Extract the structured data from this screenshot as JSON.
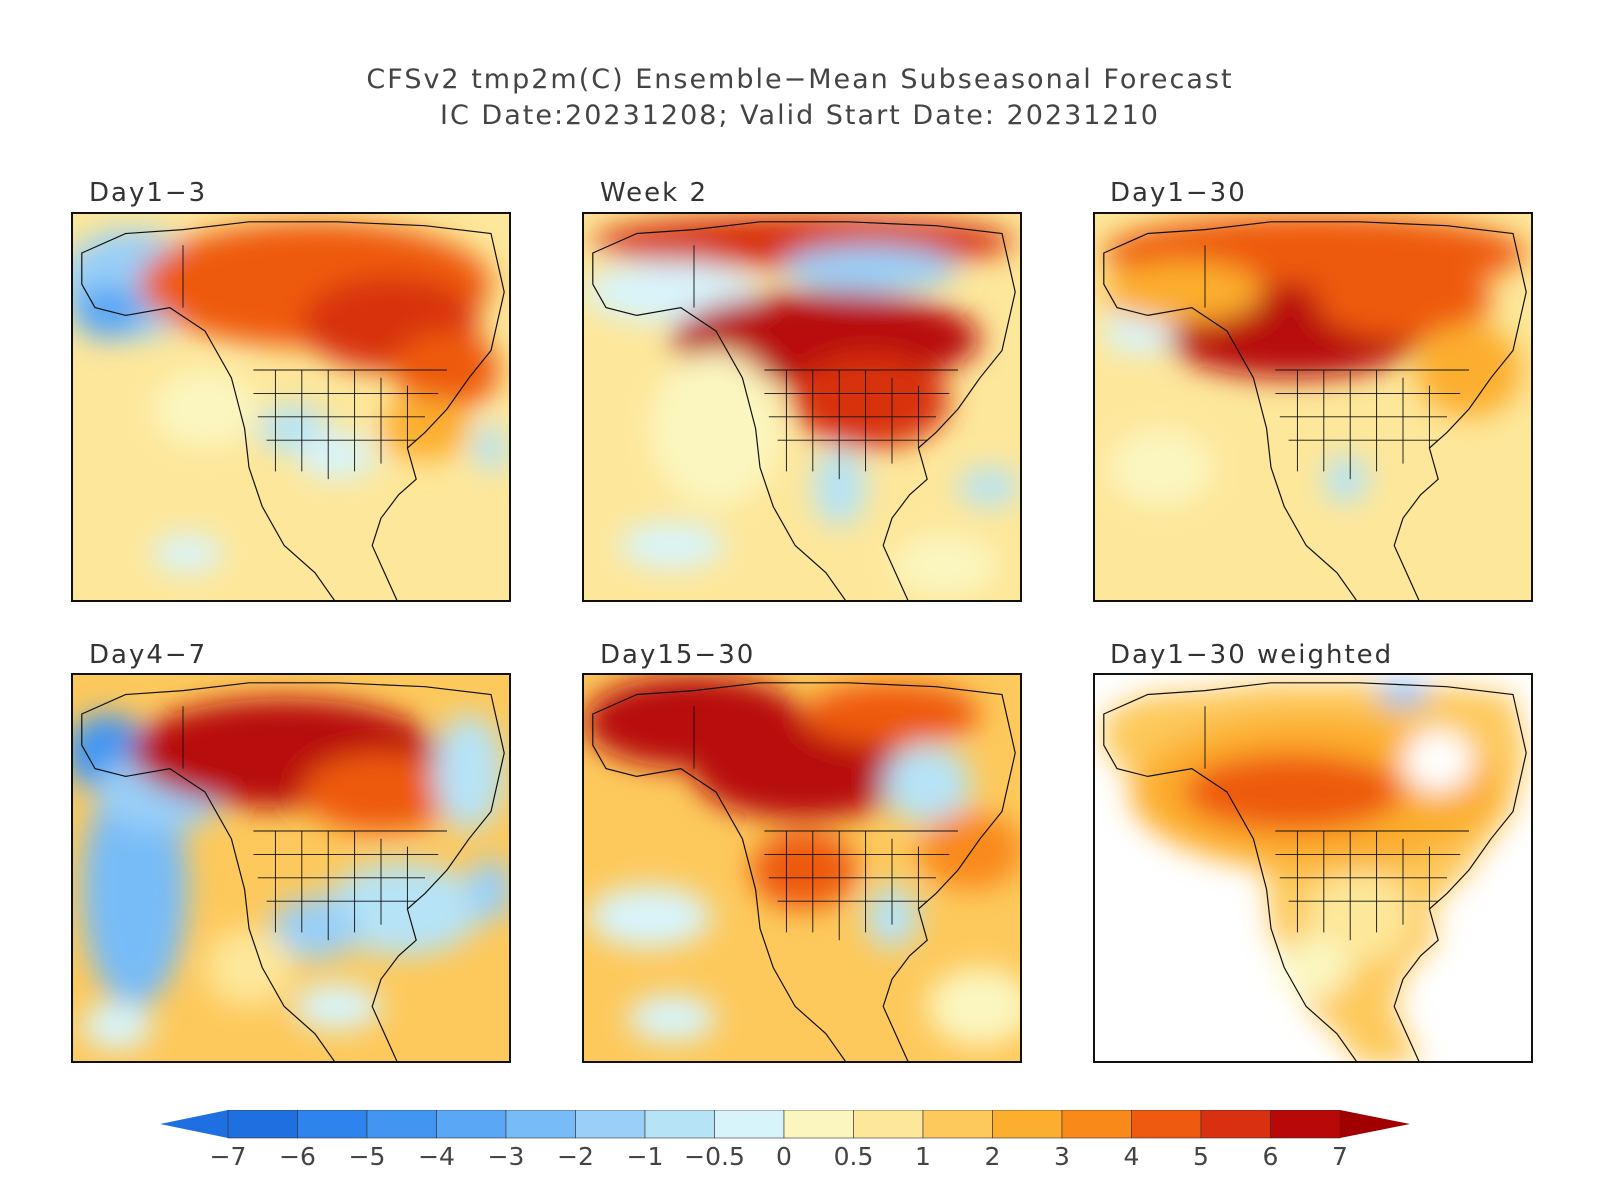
{
  "title": {
    "line1": "CFSv2 tmp2m(C) Ensemble−Mean Subseasonal Forecast",
    "line2": "IC Date:20231208; Valid Start Date: 20231210"
  },
  "panels": [
    {
      "label": "Day1−3"
    },
    {
      "label": "Week 2"
    },
    {
      "label": "Day1−30"
    },
    {
      "label": "Day4−7"
    },
    {
      "label": "Day15−30"
    },
    {
      "label": "Day1−30 weighted"
    }
  ],
  "colorbar": {
    "ticks": [
      "−7",
      "−6",
      "−5",
      "−4",
      "−3",
      "−2",
      "−1",
      "−0.5",
      "0",
      "0.5",
      "1",
      "2",
      "3",
      "4",
      "5",
      "6",
      "7"
    ],
    "colors": [
      "#1e6fe0",
      "#2e84ec",
      "#4296f2",
      "#5aa8f5",
      "#78bcf7",
      "#99cff8",
      "#b6e3f6",
      "#d8f4fb",
      "#fbf6c0",
      "#fde79a",
      "#fdc95c",
      "#fcae2e",
      "#f98a1a",
      "#ee5a10",
      "#d83010",
      "#b80808"
    ],
    "left_arrow_color": "#1e6fe0",
    "right_arrow_color": "#a00000"
  }
}
